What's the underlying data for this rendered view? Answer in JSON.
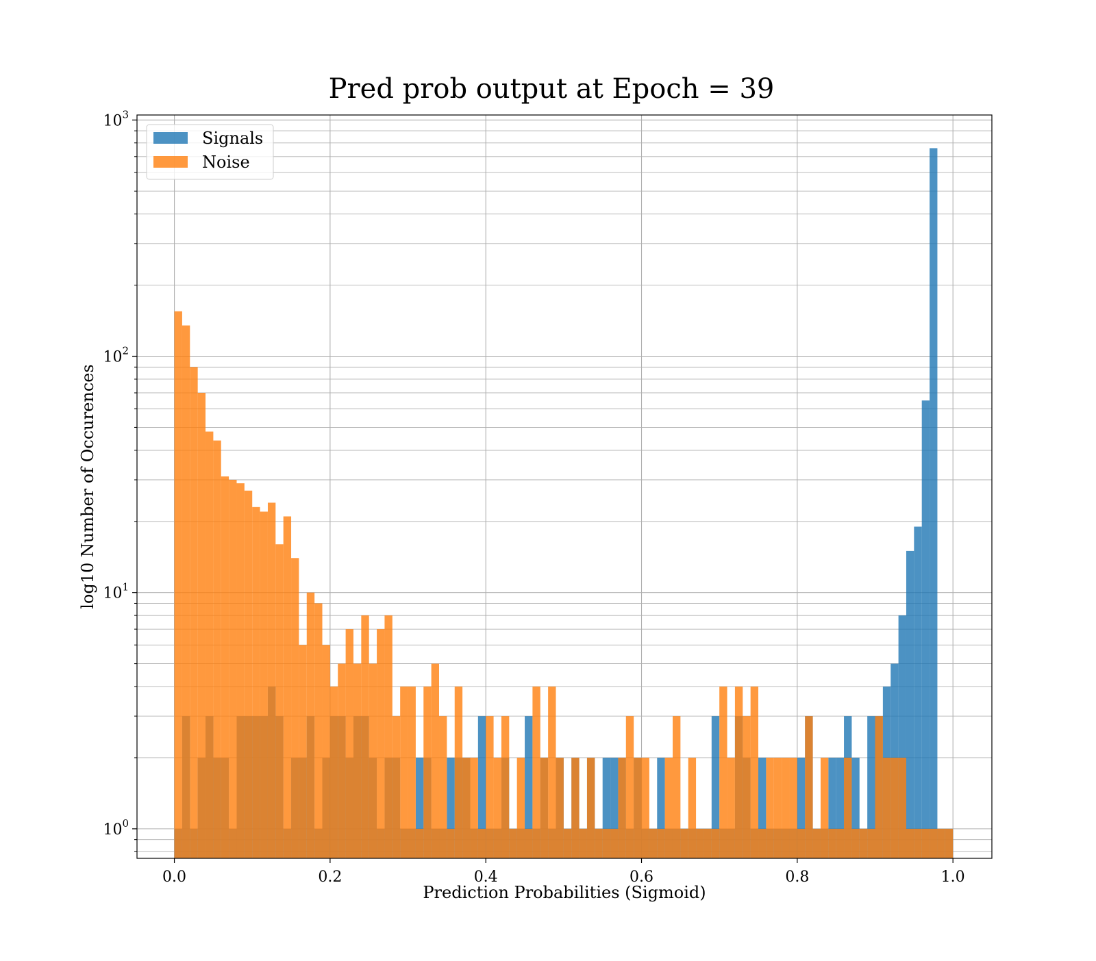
{
  "chart_data": {
    "type": "bar",
    "title": "Pred prob output at Epoch = 39",
    "xlabel": "Prediction Probabilities (Sigmoid)",
    "ylabel": "log10 Number of Occurences",
    "xlim": [
      -0.048,
      1.05
    ],
    "ylim": [
      0.75,
      1050
    ],
    "yscale": "log",
    "grid": true,
    "legend_position": "top-left",
    "bin_width": 0.01,
    "x_ticks": [
      0.0,
      0.2,
      0.4,
      0.6,
      0.8,
      1.0
    ],
    "x_tick_labels": [
      "0.0",
      "0.2",
      "0.4",
      "0.6",
      "0.8",
      "1.0"
    ],
    "y_ticks": [
      1,
      10,
      100,
      1000
    ],
    "y_tick_bases": [
      "10",
      "10",
      "10",
      "10"
    ],
    "y_tick_exponents": [
      "0",
      "1",
      "2",
      "3"
    ],
    "series": [
      {
        "name": "Signals",
        "color": "#1f77b4",
        "opacity": 0.8,
        "values": [
          1,
          3,
          1,
          2,
          3,
          2,
          2,
          1,
          3,
          3,
          3,
          3,
          4,
          3,
          1,
          2,
          2,
          3,
          1,
          2,
          3,
          3,
          2,
          3,
          3,
          2,
          1,
          2,
          2,
          1,
          1,
          2,
          2,
          1,
          1,
          2,
          2,
          2,
          1,
          3,
          1,
          1,
          2,
          1,
          1,
          3,
          1,
          2,
          1,
          2,
          1,
          2,
          1,
          2,
          1,
          2,
          2,
          2,
          1,
          2,
          1,
          1,
          2,
          1,
          1,
          1,
          1,
          1,
          1,
          3,
          1,
          1,
          3,
          2,
          1,
          2,
          1,
          1,
          1,
          1,
          2,
          3,
          1,
          1,
          2,
          2,
          3,
          2,
          1,
          3,
          3,
          4,
          5,
          8,
          15,
          19,
          65,
          760,
          1,
          1
        ]
      },
      {
        "name": "Noise",
        "color": "#ff7f0e",
        "opacity": 0.8,
        "values": [
          155,
          135,
          90,
          70,
          48,
          44,
          31,
          30,
          29,
          27,
          23,
          22,
          24,
          16,
          21,
          14,
          6,
          10,
          9,
          6,
          4,
          5,
          7,
          5,
          8,
          5,
          7,
          8,
          3,
          4,
          4,
          1,
          4,
          5,
          3,
          1,
          4,
          2,
          2,
          1,
          3,
          2,
          3,
          1,
          2,
          1,
          4,
          2,
          4,
          2,
          1,
          2,
          1,
          2,
          1,
          1,
          1,
          2,
          3,
          2,
          2,
          1,
          1,
          2,
          3,
          1,
          2,
          1,
          1,
          1,
          4,
          2,
          4,
          3,
          4,
          1,
          2,
          2,
          2,
          2,
          1,
          3,
          1,
          2,
          1,
          1,
          2,
          1,
          1,
          1,
          3,
          2,
          2,
          2,
          1,
          1,
          1,
          1,
          1,
          1
        ]
      }
    ]
  }
}
